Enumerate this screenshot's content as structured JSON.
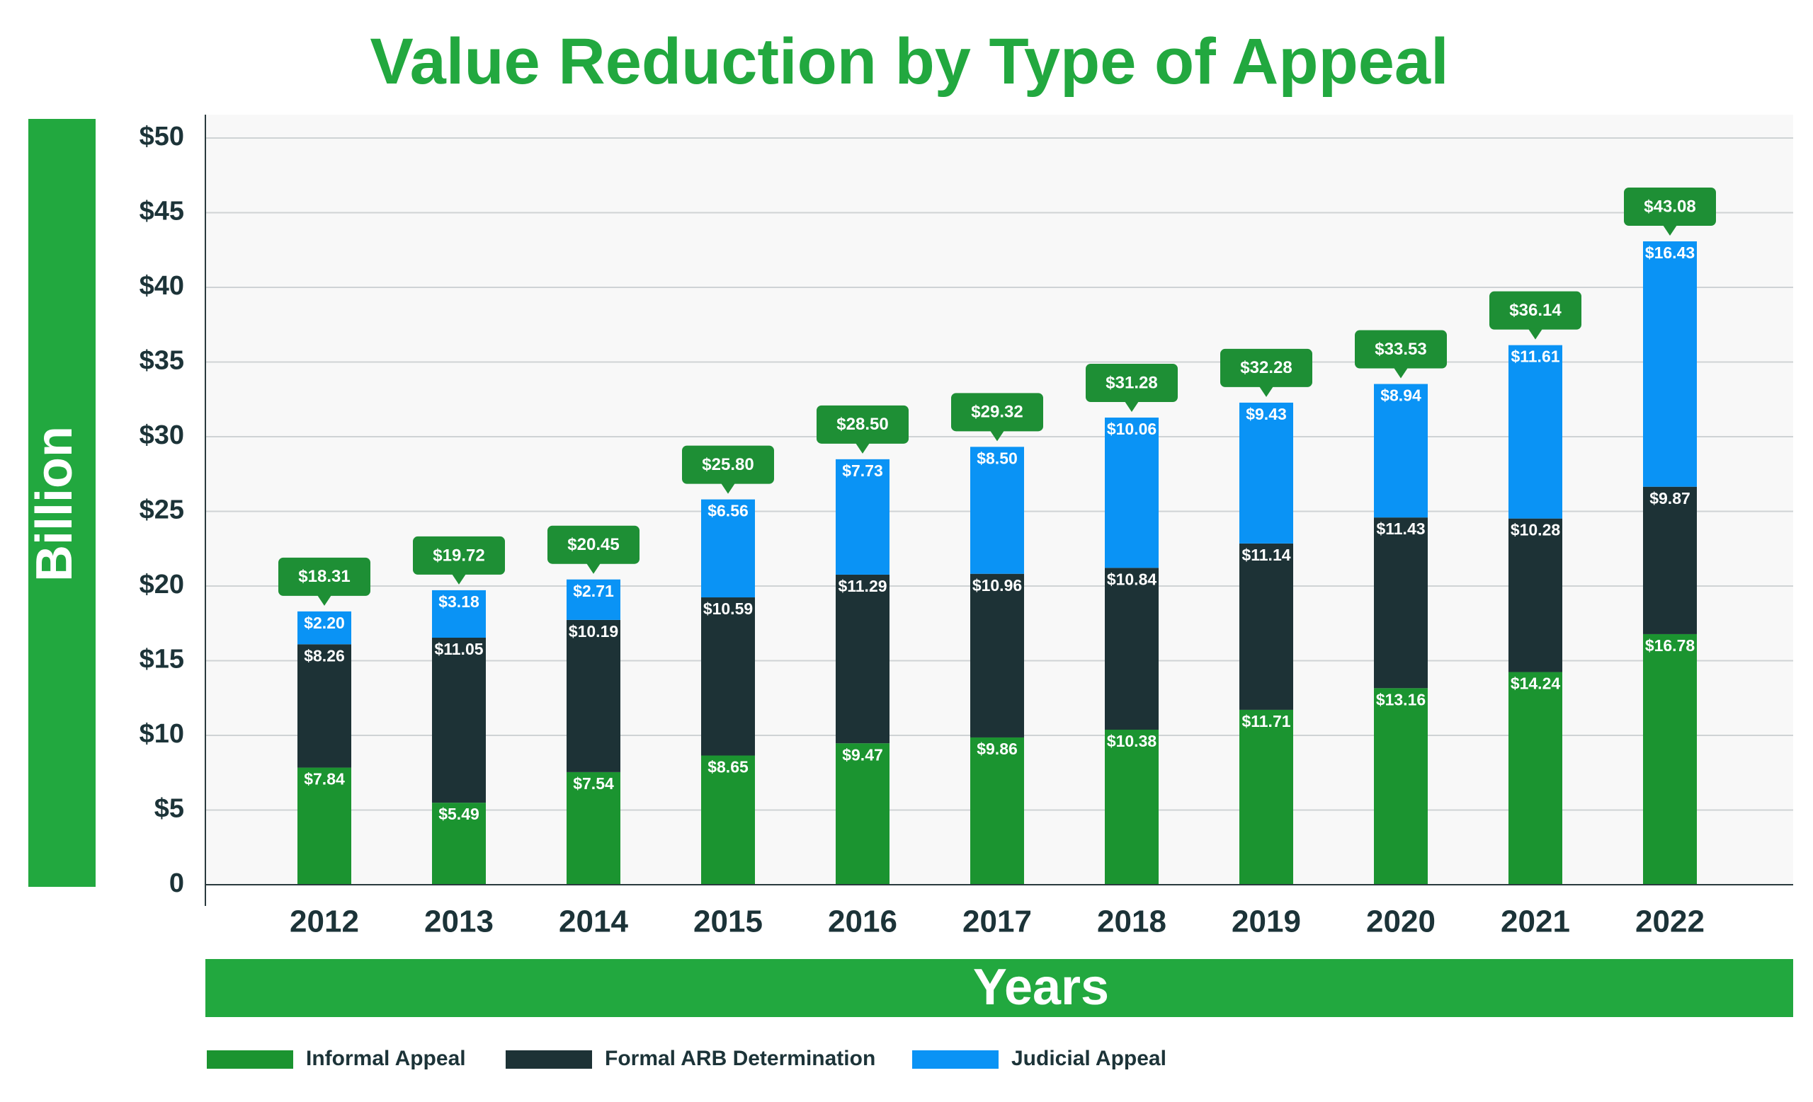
{
  "chart_data": {
    "type": "bar",
    "stacked": true,
    "title": "Value Reduction by Type of Appeal",
    "xlabel": "Years",
    "ylabel": "Billion",
    "ylim": [
      0,
      50
    ],
    "yticks": [
      0,
      5,
      10,
      15,
      20,
      25,
      30,
      35,
      40,
      45,
      50
    ],
    "ytick_labels": [
      "0",
      "$5",
      "$10",
      "$15",
      "$20",
      "$25",
      "$30",
      "$35",
      "$40",
      "$45",
      "$50"
    ],
    "grid": true,
    "legend_position": "bottom-left",
    "categories": [
      "2012",
      "2013",
      "2014",
      "2015",
      "2016",
      "2017",
      "2018",
      "2019",
      "2020",
      "2021",
      "2022"
    ],
    "series": [
      {
        "name": "Informal Appeal",
        "color": "#1b9430",
        "values": [
          7.84,
          5.49,
          7.54,
          8.65,
          9.47,
          9.86,
          10.38,
          11.71,
          13.16,
          14.24,
          16.78
        ],
        "labels": [
          "$7.84",
          "$5.49",
          "$7.54",
          "$8.65",
          "$9.47",
          "$9.86",
          "$10.38",
          "$11.71",
          "$13.16",
          "$14.24",
          "$16.78"
        ]
      },
      {
        "name": "Formal ARB Determination",
        "color": "#1d3236",
        "values": [
          8.26,
          11.05,
          10.19,
          10.59,
          11.29,
          10.96,
          10.84,
          11.14,
          11.43,
          10.28,
          9.87
        ],
        "labels": [
          "$8.26",
          "$11.05",
          "$10.19",
          "$10.59",
          "$11.29",
          "$10.96",
          "$10.84",
          "$11.14",
          "$11.43",
          "$10.28",
          "$9.87"
        ]
      },
      {
        "name": "Judicial Appeal",
        "color": "#0a93f5",
        "values": [
          2.2,
          3.18,
          2.71,
          6.56,
          7.73,
          8.5,
          10.06,
          9.43,
          8.94,
          11.61,
          16.43
        ],
        "labels": [
          "$2.20",
          "$3.18",
          "$2.71",
          "$6.56",
          "$7.73",
          "$8.50",
          "$10.06",
          "$9.43",
          "$8.94",
          "$11.61",
          "$16.43"
        ]
      }
    ],
    "totals": [
      18.31,
      19.72,
      20.45,
      25.8,
      28.5,
      29.32,
      31.28,
      32.28,
      33.53,
      36.14,
      43.08
    ],
    "total_labels": [
      "$18.31",
      "$19.72",
      "$20.45",
      "$25.80",
      "$28.50",
      "$29.32",
      "$31.28",
      "$32.28",
      "$33.53",
      "$36.14",
      "$43.08"
    ]
  },
  "colors": {
    "accent": "#22a83f",
    "callout": "#1e8f35",
    "text_dark": "#1c3338",
    "plot_background": "#f8f8f8",
    "gridline": "#cfd3d5"
  }
}
